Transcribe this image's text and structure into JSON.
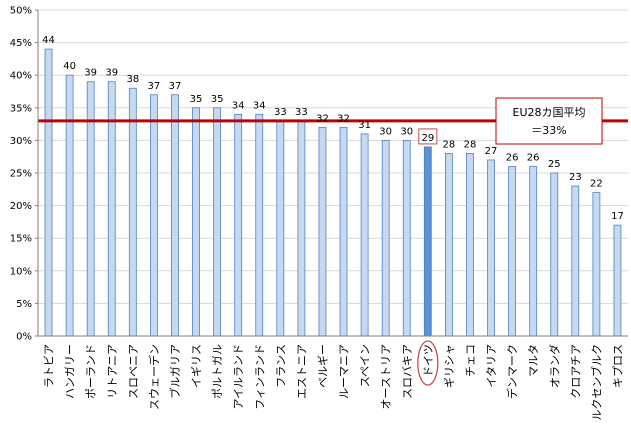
{
  "chart_data": {
    "type": "bar",
    "categories": [
      "ラトビア",
      "ハンガリー",
      "ポーランド",
      "リトアニア",
      "スロベニア",
      "スウェーデン",
      "ブルガリア",
      "イギリス",
      "ポルトガル",
      "アイルランド",
      "フィンランド",
      "フランス",
      "エストニア",
      "ベルギー",
      "ルーマニア",
      "スペイン",
      "オーストリア",
      "スロバキア",
      "ドイツ",
      "ギリシャ",
      "チェコ",
      "イタリア",
      "デンマーク",
      "マルタ",
      "オランダ",
      "クロアチア",
      "ルクセンブルク",
      "キプロス"
    ],
    "values": [
      44,
      40,
      39,
      39,
      38,
      37,
      37,
      35,
      35,
      34,
      34,
      33,
      33,
      32,
      32,
      31,
      30,
      30,
      29,
      28,
      28,
      27,
      26,
      26,
      25,
      23,
      22,
      17
    ],
    "highlight_category": "ドイツ",
    "y_ticks": [
      "0%",
      "5%",
      "10%",
      "15%",
      "20%",
      "25%",
      "30%",
      "35%",
      "40%",
      "45%",
      "50%"
    ],
    "ylim": [
      0,
      50
    ],
    "grid": true,
    "reference_line": {
      "value": 33,
      "color": "#c00000"
    },
    "annotation": {
      "line1": "EU28カ国平均",
      "line2": "＝33%"
    },
    "colors": {
      "bar": "#c6d9f1",
      "bar_stroke": "#4f81bd",
      "highlight": "#5b8fd6",
      "grid": "#d9d9d9",
      "circle": "#c0504d"
    }
  }
}
